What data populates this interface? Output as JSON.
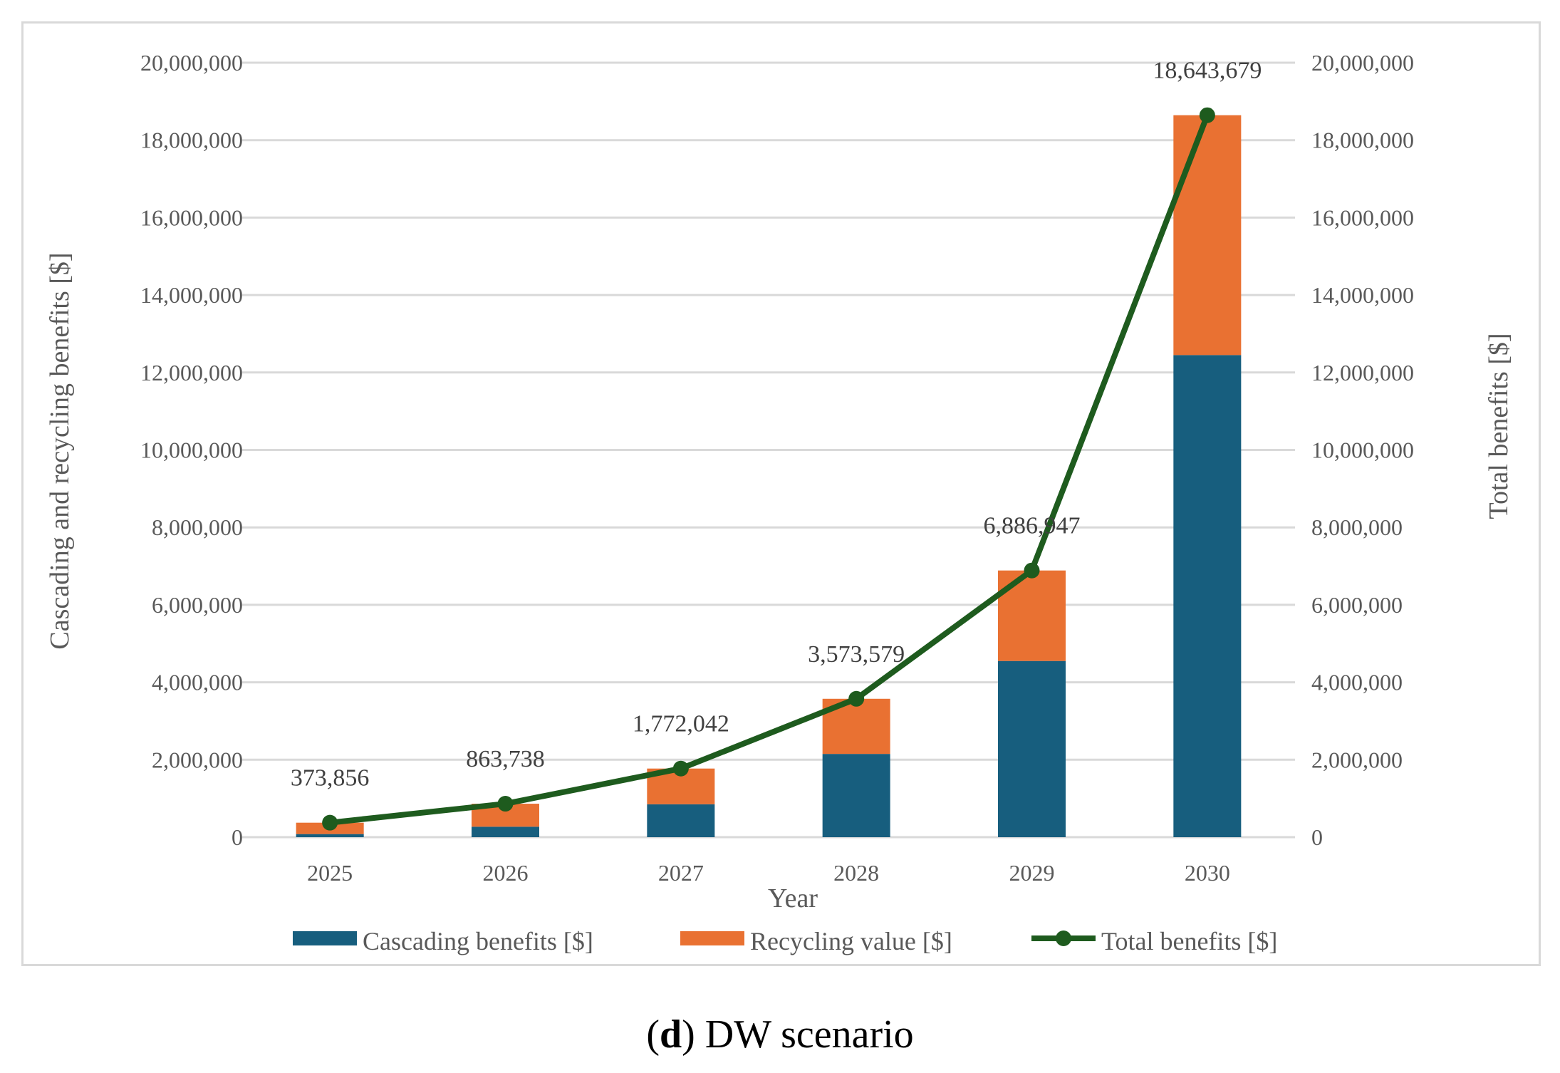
{
  "chart_data": {
    "type": "bar",
    "stacked": true,
    "categories": [
      "2025",
      "2026",
      "2027",
      "2028",
      "2029",
      "2030"
    ],
    "xlabel": "Year",
    "ylabel_left": "Cascading and recycling benefits [$]",
    "ylabel_right": "Total benefits [$]",
    "ylim": [
      0,
      20000000
    ],
    "y_ticks": [
      0,
      2000000,
      4000000,
      6000000,
      8000000,
      10000000,
      12000000,
      14000000,
      16000000,
      18000000,
      20000000
    ],
    "y_tick_labels": [
      "0",
      "2,000,000",
      "4,000,000",
      "6,000,000",
      "8,000,000",
      "10,000,000",
      "12,000,000",
      "14,000,000",
      "16,000,000",
      "18,000,000",
      "20,000,000"
    ],
    "grid": true,
    "legend_position": "bottom",
    "series": [
      {
        "name": "Cascading benefits [$]",
        "kind": "bar",
        "color": "#175e7e",
        "values": [
          80000,
          270000,
          850000,
          2150000,
          4550000,
          12450000
        ]
      },
      {
        "name": "Recycling value [$]",
        "kind": "bar",
        "color": "#e97132",
        "values": [
          293856,
          593738,
          922042,
          1423579,
          2336947,
          6193679
        ]
      },
      {
        "name": "Total benefits [$]",
        "kind": "line",
        "color": "#1e5b1e",
        "values": [
          373856,
          863738,
          1772042,
          3573579,
          6886947,
          18643679
        ]
      }
    ],
    "data_labels": [
      "373,856",
      "863,738",
      "1,772,042",
      "3,573,579",
      "6,886,947",
      "18,643,679"
    ]
  },
  "caption": {
    "letter": "d",
    "text": " DW scenario"
  }
}
